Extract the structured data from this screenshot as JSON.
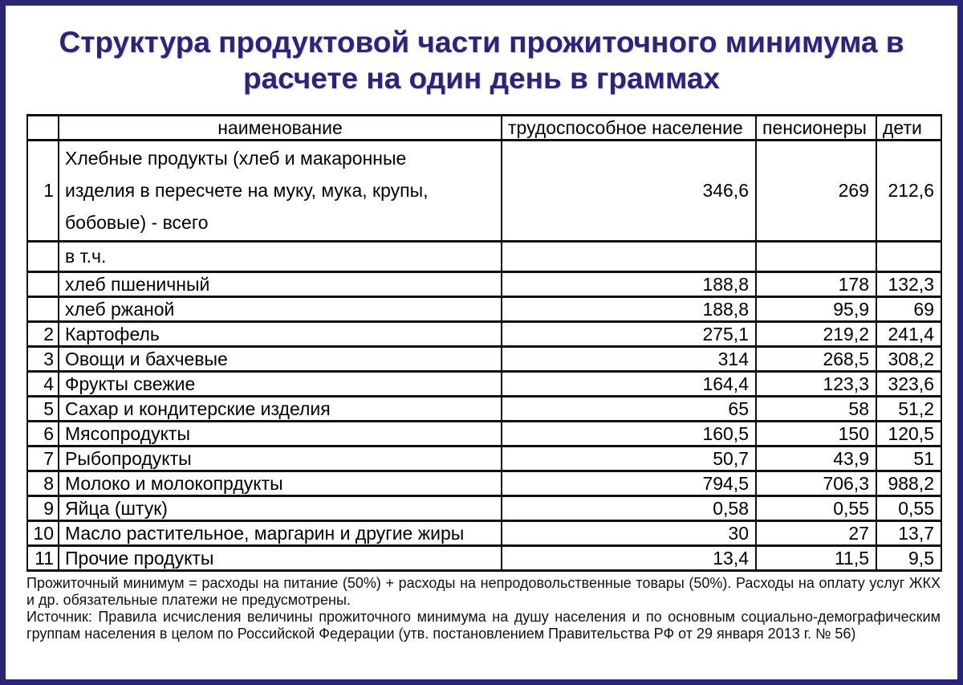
{
  "title": "Структура продуктовой части прожиточного минимума в расчете на один день в граммах",
  "colors": {
    "accent_navy": "#2b2577",
    "title_navy": "#2b2478",
    "table_border": "#111111"
  },
  "table": {
    "headers": {
      "num": "",
      "name": "наименование",
      "workers": "трудоспособное население",
      "pensioners": "пенсионеры",
      "children": "дети"
    },
    "rows": [
      {
        "num": "1",
        "name": "Хлебные продукты (хлеб и макаронные\nизделия в пересчете на муку, мука, крупы,\nбобовые) - всего",
        "workers": "346,6",
        "pensioners": "269",
        "children": "212,6",
        "cls": "row-tall"
      },
      {
        "num": "",
        "name": "в т.ч.",
        "workers": "",
        "pensioners": "",
        "children": "",
        "cls": "row-subhead"
      },
      {
        "num": "",
        "name": "хлеб пшеничный",
        "workers": "188,8",
        "pensioners": "178",
        "children": "132,3",
        "cls": ""
      },
      {
        "num": "",
        "name": "хлеб ржаной",
        "workers": "188,8",
        "pensioners": "95,9",
        "children": "69",
        "cls": ""
      },
      {
        "num": "2",
        "name": "Картофель",
        "workers": "275,1",
        "pensioners": "219,2",
        "children": "241,4",
        "cls": ""
      },
      {
        "num": "3",
        "name": "Овощи и бахчевые",
        "workers": "314",
        "pensioners": "268,5",
        "children": "308,2",
        "cls": ""
      },
      {
        "num": "4",
        "name": "Фрукты свежие",
        "workers": "164,4",
        "pensioners": "123,3",
        "children": "323,6",
        "cls": ""
      },
      {
        "num": "5",
        "name": "Сахар и кондитерские изделия",
        "workers": "65",
        "pensioners": "58",
        "children": "51,2",
        "cls": ""
      },
      {
        "num": "6",
        "name": "Мясопродукты",
        "workers": "160,5",
        "pensioners": "150",
        "children": "120,5",
        "cls": ""
      },
      {
        "num": "7",
        "name": "Рыбопродукты",
        "workers": "50,7",
        "pensioners": "43,9",
        "children": "51",
        "cls": ""
      },
      {
        "num": "8",
        "name": "Молоко и молокопрдукты",
        "workers": "794,5",
        "pensioners": "706,3",
        "children": "988,2",
        "cls": ""
      },
      {
        "num": "9",
        "name": "Яйца (штук)",
        "workers": "0,58",
        "pensioners": "0,55",
        "children": "0,55",
        "cls": ""
      },
      {
        "num": "10",
        "name": "Масло растительное, маргарин и другие жиры",
        "workers": "30",
        "pensioners": "27",
        "children": "13,7",
        "cls": ""
      },
      {
        "num": "11",
        "name": "Прочие продукты",
        "workers": "13,4",
        "pensioners": "11,5",
        "children": "9,5",
        "cls": ""
      }
    ]
  },
  "footnotes": {
    "note": "Прожиточный минимум = расходы на питание (50%) + расходы на непродовольственные товары (50%). Расходы на оплату услуг ЖКХ и др. обязательные платежи не предусмотрены.",
    "source": "Источник: Правила исчисления величины прожиточного минимума на душу населения и по основным социально-демографическим группам населения в целом по Российской Федерации (утв. постановлением Правительства РФ от 29 января 2013 г. № 56)"
  }
}
